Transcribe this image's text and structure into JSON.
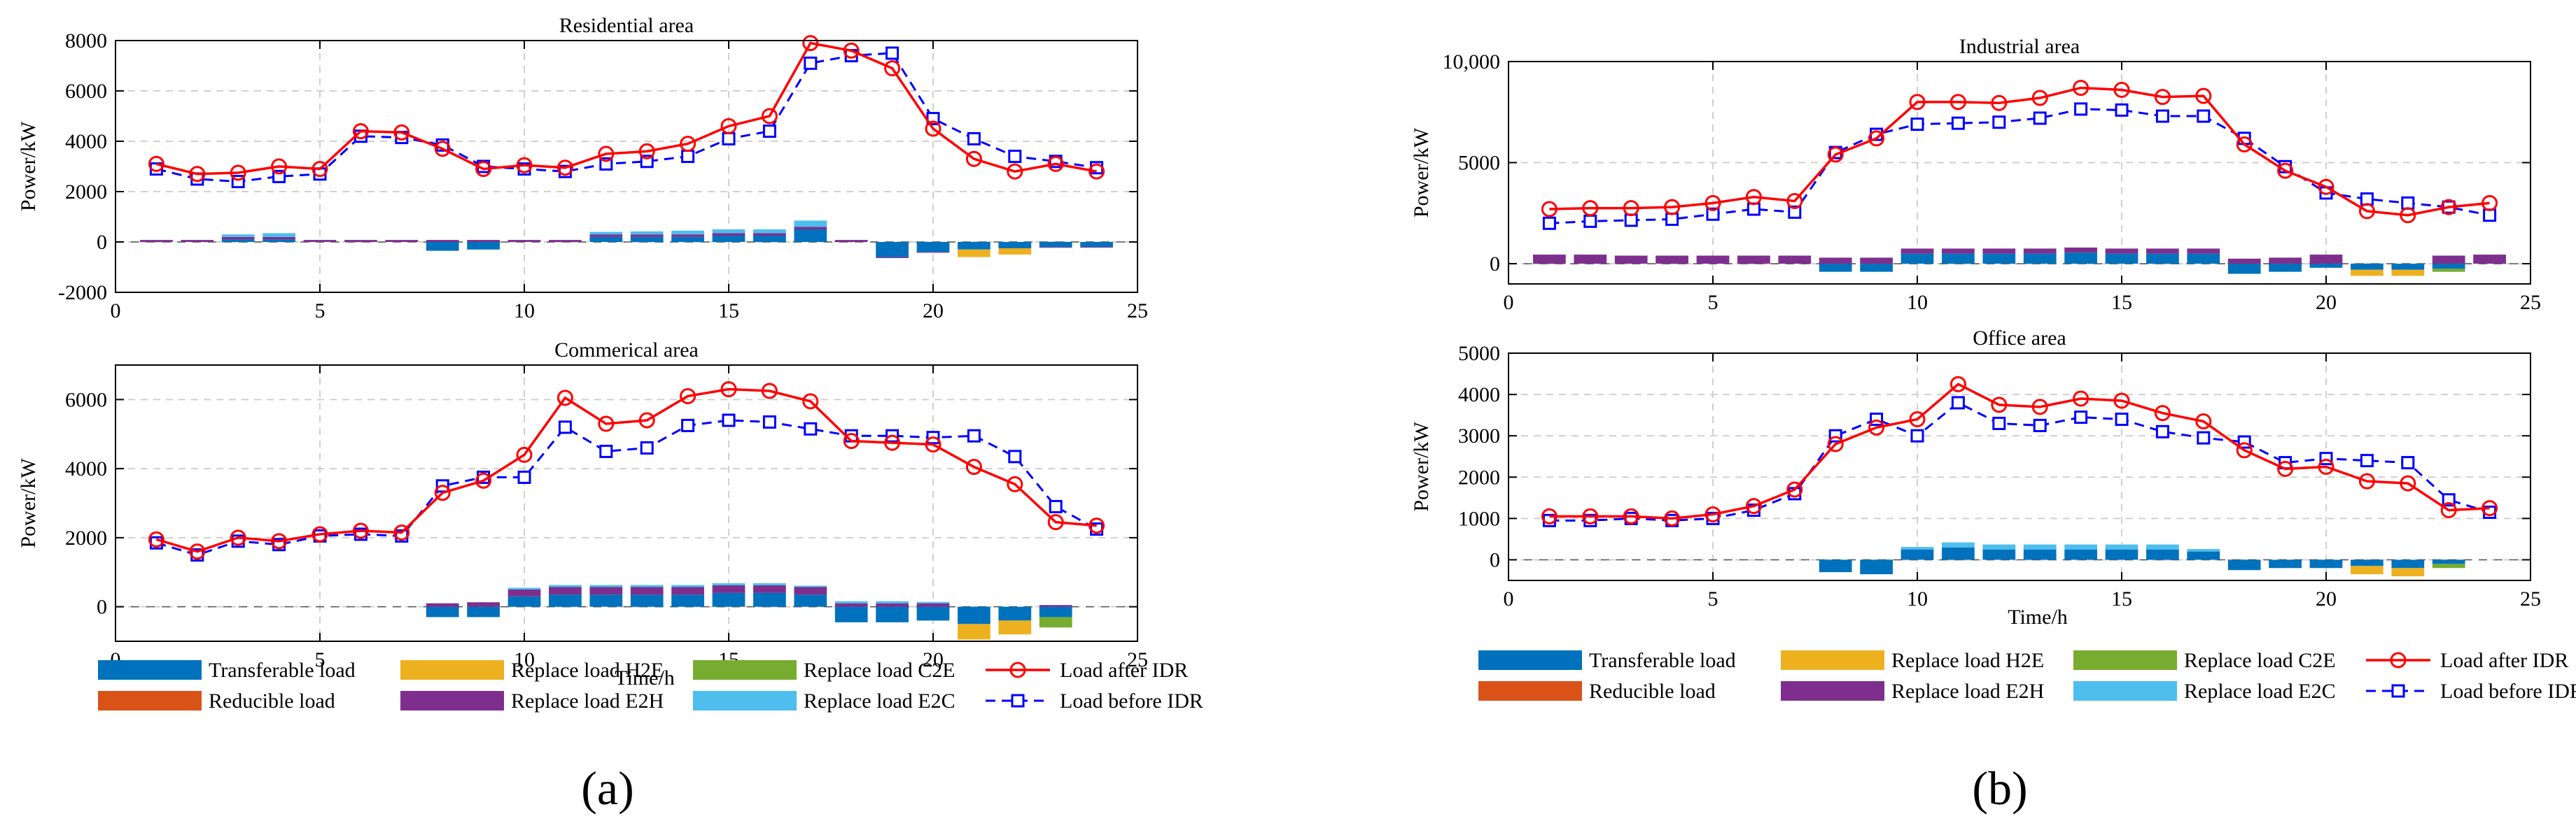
{
  "figure_labels": {
    "a": "(a)",
    "b": "(b)"
  },
  "colors": {
    "transferable": "#0072BD",
    "reducible": "#D95319",
    "h2e": "#EDB120",
    "e2h": "#7E2F8E",
    "c2e": "#77AC30",
    "e2c": "#4DBEEE",
    "after": "#FF0000",
    "before": "#0000FF"
  },
  "legends": [
    {
      "transferable": "Transferable load",
      "reducible": "Reducible load",
      "h2e": "Replace load H2E",
      "e2h": "Replace load E2H",
      "c2e": "Replace load C2E",
      "e2c": "Replace load E2C",
      "after": "Load after IDR",
      "before": "Load before IDR"
    },
    {
      "transferable": "Transferable load",
      "reducible": "Reducible load",
      "h2e": "Replace load H2E",
      "e2h": "Replace load E2H",
      "c2e": "Replace load C2E",
      "e2c": "Replace load E2C",
      "after": "Load after IDR",
      "before": "Load before IDR"
    }
  ],
  "chart_data": [
    {
      "type": "bar+line",
      "title": "Residential area",
      "xlabel": "",
      "ylabel": "Power/kW",
      "xlim": [
        0,
        25
      ],
      "ylim": [
        -2000,
        8000
      ],
      "xticks": [
        0,
        5,
        10,
        15,
        20,
        25
      ],
      "yticks": [
        -2000,
        0,
        2000,
        4000,
        6000,
        8000
      ],
      "ytick_labels": [
        "-2000",
        "0",
        "2000",
        "4000",
        "6000",
        "8000"
      ],
      "hours": [
        1,
        2,
        3,
        4,
        5,
        6,
        7,
        8,
        9,
        10,
        11,
        12,
        13,
        14,
        15,
        16,
        17,
        18,
        19,
        20,
        21,
        22,
        23,
        24
      ],
      "bars": {
        "transferable": [
          0,
          0,
          100,
          100,
          0,
          0,
          0,
          -350,
          -300,
          0,
          0,
          200,
          200,
          200,
          250,
          250,
          500,
          0,
          -600,
          -400,
          -300,
          -250,
          -200,
          -200
        ],
        "e2h": [
          80,
          80,
          100,
          100,
          80,
          80,
          80,
          80,
          80,
          80,
          80,
          100,
          100,
          100,
          100,
          100,
          100,
          80,
          -40,
          -20,
          0,
          0,
          -30,
          -20
        ],
        "e2c": [
          0,
          0,
          100,
          150,
          0,
          0,
          0,
          0,
          0,
          0,
          0,
          100,
          120,
          150,
          150,
          150,
          250,
          0,
          0,
          0,
          0,
          0,
          0,
          0
        ],
        "h2e": [
          0,
          0,
          0,
          0,
          0,
          0,
          0,
          0,
          0,
          0,
          0,
          0,
          0,
          0,
          0,
          0,
          0,
          0,
          0,
          0,
          -300,
          -250,
          0,
          0
        ],
        "c2e": [
          0,
          0,
          0,
          0,
          0,
          0,
          0,
          0,
          0,
          0,
          0,
          0,
          0,
          0,
          0,
          0,
          0,
          0,
          0,
          0,
          0,
          0,
          0,
          0
        ],
        "reducible": [
          0,
          0,
          0,
          0,
          0,
          0,
          0,
          0,
          0,
          0,
          0,
          0,
          0,
          0,
          0,
          0,
          0,
          0,
          0,
          0,
          0,
          0,
          0,
          0
        ]
      },
      "series": [
        {
          "name": "Load after IDR",
          "values": [
            3100,
            2700,
            2750,
            3000,
            2900,
            4400,
            4350,
            3700,
            2900,
            3050,
            2950,
            3500,
            3600,
            3900,
            4600,
            5000,
            7900,
            7600,
            6900,
            4500,
            3300,
            2800,
            3100,
            2800
          ]
        },
        {
          "name": "Load before IDR",
          "values": [
            2900,
            2500,
            2400,
            2600,
            2700,
            4200,
            4150,
            3850,
            3000,
            2900,
            2800,
            3100,
            3200,
            3400,
            4100,
            4400,
            7100,
            7400,
            7500,
            4900,
            4100,
            3400,
            3200,
            2950
          ]
        }
      ]
    },
    {
      "type": "bar+line",
      "title": "Commerical area",
      "xlabel": "Time/h",
      "ylabel": "Power/kW",
      "xlim": [
        0,
        25
      ],
      "ylim": [
        -1000,
        7000
      ],
      "xticks": [
        0,
        5,
        10,
        15,
        20,
        25
      ],
      "yticks": [
        0,
        2000,
        4000,
        6000
      ],
      "ytick_labels": [
        "0",
        "2000",
        "4000",
        "6000"
      ],
      "hours": [
        1,
        2,
        3,
        4,
        5,
        6,
        7,
        8,
        9,
        10,
        11,
        12,
        13,
        14,
        15,
        16,
        17,
        18,
        19,
        20,
        21,
        22,
        23,
        24
      ],
      "bars": {
        "transferable": [
          0,
          0,
          0,
          0,
          0,
          0,
          0,
          -300,
          -300,
          300,
          350,
          350,
          350,
          350,
          400,
          400,
          350,
          -450,
          -450,
          -400,
          -500,
          -400,
          -300,
          0
        ],
        "e2h": [
          0,
          0,
          0,
          0,
          0,
          0,
          0,
          100,
          130,
          200,
          220,
          220,
          220,
          220,
          220,
          220,
          220,
          100,
          100,
          100,
          0,
          0,
          50,
          0
        ],
        "e2c": [
          0,
          0,
          0,
          0,
          0,
          0,
          0,
          0,
          0,
          50,
          60,
          60,
          60,
          60,
          60,
          60,
          40,
          60,
          60,
          40,
          0,
          0,
          0,
          0
        ],
        "h2e": [
          0,
          0,
          0,
          0,
          0,
          0,
          0,
          0,
          0,
          0,
          0,
          0,
          0,
          0,
          0,
          0,
          0,
          0,
          0,
          0,
          -450,
          -400,
          0,
          0
        ],
        "c2e": [
          0,
          0,
          0,
          0,
          0,
          0,
          0,
          0,
          0,
          0,
          0,
          0,
          0,
          0,
          0,
          0,
          0,
          0,
          0,
          0,
          0,
          0,
          -300,
          0
        ],
        "reducible": [
          0,
          0,
          0,
          0,
          0,
          0,
          0,
          0,
          0,
          0,
          0,
          0,
          0,
          0,
          0,
          0,
          0,
          0,
          0,
          0,
          0,
          0,
          0,
          0
        ]
      },
      "series": [
        {
          "name": "Load after IDR",
          "values": [
            1950,
            1600,
            2000,
            1900,
            2100,
            2200,
            2150,
            3300,
            3650,
            4400,
            6050,
            5300,
            5400,
            6100,
            6300,
            6250,
            5950,
            4800,
            4750,
            4700,
            4050,
            3550,
            2450,
            2350
          ]
        },
        {
          "name": "Load before IDR",
          "values": [
            1850,
            1500,
            1900,
            1800,
            2050,
            2100,
            2050,
            3500,
            3750,
            3750,
            5200,
            4500,
            4600,
            5250,
            5400,
            5350,
            5150,
            4950,
            4950,
            4900,
            4950,
            4350,
            2900,
            2250
          ]
        }
      ]
    },
    {
      "type": "bar+line",
      "title": "Industrial area",
      "xlabel": "",
      "ylabel": "Power/kW",
      "xlim": [
        0,
        25
      ],
      "ylim": [
        -1000,
        10000
      ],
      "xticks": [
        0,
        5,
        10,
        15,
        20,
        25
      ],
      "yticks": [
        0,
        5000,
        10000
      ],
      "ytick_labels": [
        "0",
        "5000",
        "10,000"
      ],
      "hours": [
        1,
        2,
        3,
        4,
        5,
        6,
        7,
        8,
        9,
        10,
        11,
        12,
        13,
        14,
        15,
        16,
        17,
        18,
        19,
        20,
        21,
        22,
        23,
        24
      ],
      "bars": {
        "transferable": [
          0,
          0,
          0,
          0,
          0,
          0,
          0,
          -400,
          -400,
          500,
          500,
          500,
          500,
          550,
          500,
          500,
          500,
          -500,
          -400,
          -200,
          -300,
          -300,
          -250,
          0
        ],
        "e2h": [
          450,
          450,
          400,
          400,
          400,
          400,
          400,
          300,
          300,
          250,
          250,
          250,
          250,
          250,
          250,
          250,
          250,
          250,
          300,
          450,
          0,
          0,
          400,
          450
        ],
        "e2c": [
          0,
          0,
          0,
          0,
          0,
          0,
          0,
          0,
          0,
          0,
          0,
          0,
          0,
          0,
          0,
          0,
          0,
          0,
          0,
          0,
          0,
          0,
          0,
          0
        ],
        "h2e": [
          0,
          0,
          0,
          0,
          0,
          0,
          0,
          0,
          0,
          0,
          0,
          0,
          0,
          0,
          0,
          0,
          0,
          0,
          0,
          0,
          -300,
          -300,
          0,
          0
        ],
        "c2e": [
          0,
          0,
          0,
          0,
          0,
          0,
          0,
          0,
          0,
          0,
          0,
          0,
          0,
          0,
          0,
          0,
          0,
          0,
          0,
          0,
          0,
          0,
          -150,
          0
        ],
        "reducible": [
          0,
          0,
          0,
          0,
          0,
          0,
          0,
          0,
          0,
          0,
          0,
          0,
          0,
          0,
          0,
          0,
          0,
          0,
          0,
          0,
          0,
          0,
          0,
          0
        ]
      },
      "series": [
        {
          "name": "Load after IDR",
          "values": [
            2700,
            2750,
            2750,
            2800,
            3000,
            3300,
            3100,
            5400,
            6200,
            8000,
            8000,
            7950,
            8200,
            8700,
            8600,
            8250,
            8300,
            5900,
            4600,
            3800,
            2600,
            2400,
            2800,
            3000
          ]
        },
        {
          "name": "Load before IDR",
          "values": [
            2000,
            2100,
            2150,
            2200,
            2450,
            2700,
            2550,
            5500,
            6400,
            6900,
            6950,
            7000,
            7200,
            7650,
            7600,
            7300,
            7300,
            6200,
            4800,
            3500,
            3200,
            3000,
            2800,
            2400
          ]
        }
      ]
    },
    {
      "type": "bar+line",
      "title": "Office area",
      "xlabel": "Time/h",
      "ylabel": "Power/kW",
      "xlim": [
        0,
        25
      ],
      "ylim": [
        -500,
        5000
      ],
      "xticks": [
        0,
        5,
        10,
        15,
        20,
        25
      ],
      "yticks": [
        0,
        1000,
        2000,
        3000,
        4000,
        5000
      ],
      "ytick_labels": [
        "0",
        "1000",
        "2000",
        "3000",
        "4000",
        "5000"
      ],
      "hours": [
        1,
        2,
        3,
        4,
        5,
        6,
        7,
        8,
        9,
        10,
        11,
        12,
        13,
        14,
        15,
        16,
        17,
        18,
        19,
        20,
        21,
        22,
        23,
        24
      ],
      "bars": {
        "transferable": [
          0,
          0,
          0,
          0,
          0,
          0,
          0,
          -300,
          -350,
          250,
          300,
          250,
          250,
          250,
          250,
          250,
          200,
          -250,
          -200,
          -200,
          -150,
          -200,
          -100,
          0
        ],
        "e2h": [
          0,
          0,
          0,
          0,
          0,
          0,
          0,
          0,
          0,
          0,
          0,
          0,
          0,
          0,
          0,
          0,
          0,
          0,
          0,
          0,
          0,
          0,
          0,
          0
        ],
        "e2c": [
          0,
          0,
          0,
          0,
          0,
          0,
          0,
          0,
          0,
          60,
          120,
          120,
          120,
          120,
          120,
          120,
          60,
          0,
          0,
          0,
          0,
          0,
          0,
          0
        ],
        "h2e": [
          0,
          0,
          0,
          0,
          0,
          0,
          0,
          0,
          0,
          0,
          0,
          0,
          0,
          0,
          0,
          0,
          0,
          0,
          0,
          0,
          -200,
          -200,
          0,
          0
        ],
        "c2e": [
          0,
          0,
          0,
          0,
          0,
          0,
          0,
          0,
          0,
          0,
          0,
          0,
          0,
          0,
          0,
          0,
          0,
          0,
          0,
          0,
          0,
          0,
          -100,
          0
        ],
        "reducible": [
          0,
          0,
          0,
          0,
          0,
          0,
          0,
          0,
          0,
          0,
          0,
          0,
          0,
          0,
          0,
          0,
          0,
          0,
          0,
          0,
          0,
          0,
          0,
          0
        ]
      },
      "series": [
        {
          "name": "Load after IDR",
          "values": [
            1050,
            1050,
            1050,
            1000,
            1100,
            1300,
            1700,
            2800,
            3200,
            3400,
            4250,
            3750,
            3700,
            3900,
            3850,
            3550,
            3350,
            2650,
            2200,
            2250,
            1900,
            1850,
            1200,
            1250
          ]
        },
        {
          "name": "Load before IDR",
          "values": [
            950,
            950,
            1000,
            950,
            1000,
            1200,
            1600,
            3000,
            3400,
            3000,
            3800,
            3300,
            3250,
            3450,
            3400,
            3100,
            2950,
            2850,
            2350,
            2450,
            2400,
            2350,
            1450,
            1150
          ]
        }
      ]
    }
  ]
}
